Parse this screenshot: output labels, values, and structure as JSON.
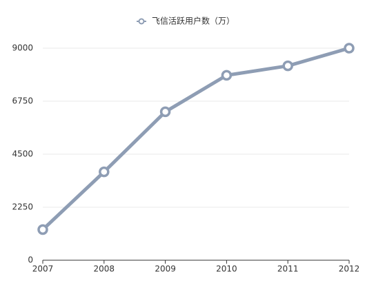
{
  "chart_data": {
    "type": "line",
    "categories": [
      "2007",
      "2008",
      "2009",
      "2010",
      "2011",
      "2012"
    ],
    "series": [
      {
        "name": "飞信活跃用户数（万）",
        "color": "#8e9db4",
        "values": [
          1300,
          3750,
          6300,
          7850,
          8250,
          9000
        ]
      }
    ],
    "ylim": [
      0,
      9000
    ],
    "yticks": [
      0,
      2250,
      4500,
      6750,
      9000
    ],
    "grid": true,
    "legend": "top"
  }
}
